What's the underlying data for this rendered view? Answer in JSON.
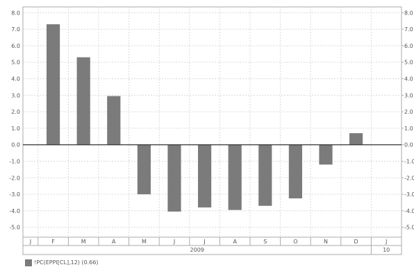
{
  "chart_data": {
    "type": "bar",
    "categories": [
      "J",
      "F",
      "M",
      "A",
      "M",
      "J",
      "J",
      "A",
      "S",
      "O",
      "N",
      "D",
      "J"
    ],
    "values": [
      null,
      7.3,
      5.3,
      2.95,
      -3.0,
      -4.05,
      -3.8,
      -3.95,
      -3.7,
      -3.25,
      -1.2,
      0.7,
      null
    ],
    "year_labels": [
      "2009",
      "10"
    ],
    "y_ticks": [
      "-5.0",
      "-4.0",
      "-3.0",
      "-2.0",
      "-1.0",
      "0.0",
      "1.0",
      "2.0",
      "3.0",
      "4.0",
      "5.0",
      "6.0",
      "7.0",
      "8.0"
    ],
    "ylim": [
      -5.6,
      8.35
    ],
    "grid": true,
    "bar_color": "#7b7b7b",
    "zero_line_color": "#333333",
    "legend": "!PC(EPPI[CL],12) (0.66)"
  }
}
